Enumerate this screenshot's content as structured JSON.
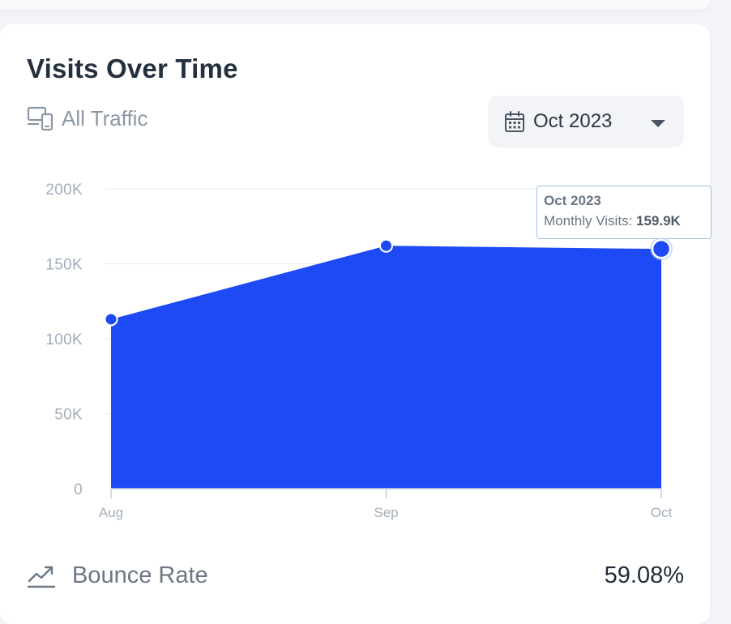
{
  "card": {
    "title": "Visits Over Time",
    "traffic_label": "All Traffic",
    "traffic_icon": "devices-icon",
    "date_select": {
      "value": "Oct 2023",
      "icon": "calendar-icon",
      "caret_icon": "chevron-down-icon"
    }
  },
  "tooltip": {
    "title": "Oct 2023",
    "label": "Monthly Visits:",
    "value": "159.9K"
  },
  "bounce": {
    "label": "Bounce Rate",
    "value": "59.08%",
    "icon": "trend-chart-icon"
  },
  "colors": {
    "area": "#1d4af5",
    "point": "#1d4af5",
    "grid": "#e8ebf0",
    "axis_text": "#a3adba"
  },
  "chart_data": {
    "type": "area",
    "categories": [
      "Aug",
      "Sep",
      "Oct"
    ],
    "values": [
      113000,
      162000,
      159900
    ],
    "yticks": [
      0,
      50000,
      100000,
      150000,
      200000
    ],
    "ytick_labels": [
      "0",
      "50K",
      "100K",
      "150K",
      "200K"
    ],
    "ylim": [
      0,
      200000
    ],
    "grid": true,
    "title": "",
    "xlabel": "",
    "ylabel": "",
    "highlighted": "Oct"
  }
}
